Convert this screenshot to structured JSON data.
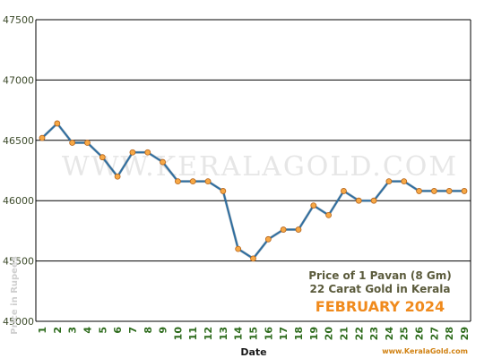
{
  "chart_data": {
    "type": "line",
    "x": [
      1,
      2,
      3,
      4,
      5,
      6,
      7,
      8,
      9,
      10,
      11,
      12,
      13,
      14,
      15,
      16,
      17,
      18,
      19,
      20,
      21,
      22,
      23,
      24,
      25,
      26,
      27,
      28,
      29
    ],
    "series": [
      {
        "values": [
          46520,
          46640,
          46480,
          46480,
          46360,
          46200,
          46400,
          46400,
          46320,
          46160,
          46160,
          46160,
          46080,
          45600,
          45520,
          45680,
          45760,
          45760,
          45960,
          45880,
          46080,
          46000,
          46000,
          46160,
          46160,
          46080,
          46080,
          46080,
          46080
        ]
      }
    ],
    "ylim": [
      45000,
      47500
    ],
    "yticks": [
      45000,
      45500,
      46000,
      46500,
      47000,
      47500
    ],
    "xlabel": "Date",
    "ylabel": "Price in Rupees",
    "grid": "horizontal",
    "line_color": "#2f6ea0",
    "marker_color": "#f7a845"
  },
  "watermark": "WWW.KERALAGOLD.COM",
  "annotation": {
    "line1": "Price of 1 Pavan (8 Gm)",
    "line2": "22 Carat Gold in Kerala",
    "month": "FEBRUARY 2024"
  },
  "credit": "www.KeralaGold.com"
}
